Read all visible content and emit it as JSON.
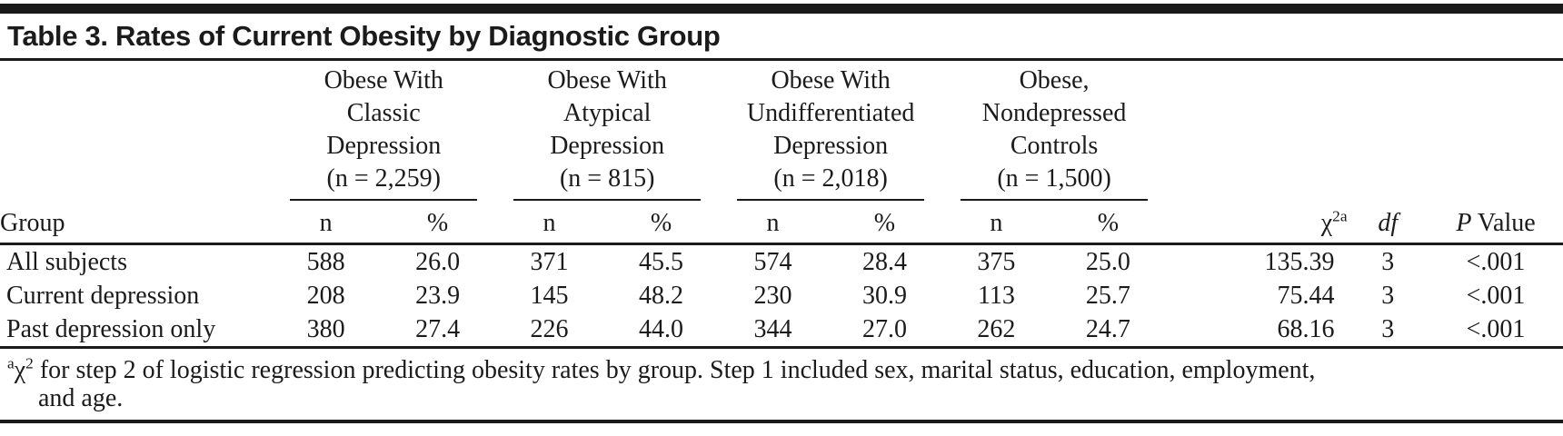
{
  "colors": {
    "text": "#1b1b1b",
    "rule": "#1a1a1a",
    "background": "#ffffff"
  },
  "title": "Table 3. Rates of Current Obesity by Diagnostic Group",
  "table": {
    "group_column_header": "Group",
    "groups": [
      {
        "name": "Obese With\nClassic\nDepression\n(n = 2,259)",
        "sub": {
          "n": "n",
          "pct": "%"
        }
      },
      {
        "name": "Obese With\nAtypical\nDepression\n(n = 815)",
        "sub": {
          "n": "n",
          "pct": "%"
        }
      },
      {
        "name": "Obese With\nUndifferentiated\nDepression\n(n = 2,018)",
        "sub": {
          "n": "n",
          "pct": "%"
        }
      },
      {
        "name": "Obese,\nNondepressed\nControls\n(n = 1,500)",
        "sub": {
          "n": "n",
          "pct": "%"
        }
      }
    ],
    "stat_headers": {
      "chi_base": "χ",
      "chi_sup": "2a",
      "df": "df",
      "p_italic": "P",
      "p_rest": " Value"
    },
    "rows": [
      {
        "label": "All subjects",
        "values": [
          "588",
          "26.0",
          "371",
          "45.5",
          "574",
          "28.4",
          "375",
          "25.0",
          "135.39",
          "3",
          "<.001"
        ]
      },
      {
        "label": "Current depression",
        "values": [
          "208",
          "23.9",
          "145",
          "48.2",
          "230",
          "30.9",
          "113",
          "25.7",
          "75.44",
          "3",
          "<.001"
        ]
      },
      {
        "label": "Past depression only",
        "values": [
          "380",
          "27.4",
          "226",
          "44.0",
          "344",
          "27.0",
          "262",
          "24.7",
          "68.16",
          "3",
          "<.001"
        ]
      }
    ]
  },
  "footnote": {
    "marker": "a",
    "chi": "χ",
    "chi_sup": "2",
    "line1": " for step 2 of logistic regression predicting obesity rates by group. Step 1 included sex, marital status, education, employment,",
    "line2": "and age."
  }
}
